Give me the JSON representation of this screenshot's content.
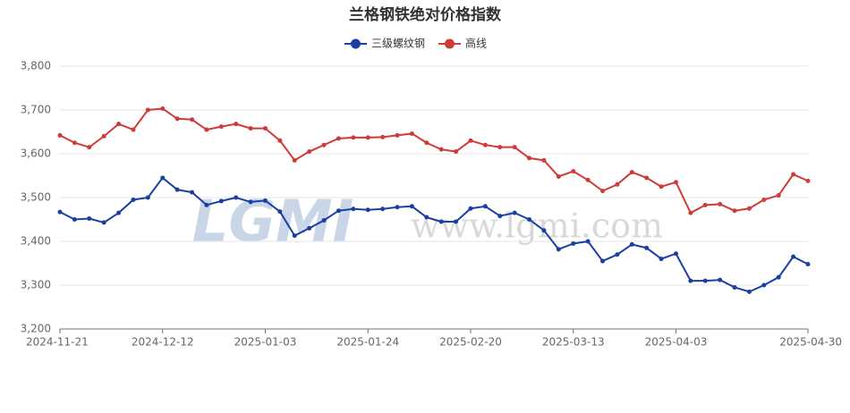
{
  "chart_data": {
    "type": "line",
    "title": "兰格钢铁绝对价格指数",
    "watermark": [
      "LGMI",
      "www.lgmi.com"
    ],
    "categories": [
      "2024-11-21",
      null,
      null,
      null,
      null,
      null,
      null,
      "2024-12-12",
      null,
      null,
      null,
      null,
      null,
      null,
      "2025-01-03",
      null,
      null,
      null,
      null,
      null,
      null,
      "2025-01-24",
      null,
      null,
      null,
      null,
      null,
      null,
      "2025-02-20",
      null,
      null,
      null,
      null,
      null,
      null,
      "2025-03-13",
      null,
      null,
      null,
      null,
      null,
      null,
      "2025-04-03",
      null,
      null,
      null,
      null,
      null,
      null,
      null,
      null,
      "2025-04-30"
    ],
    "series": [
      {
        "name": "三级螺纹钢",
        "color": "#1a3fa3",
        "values": [
          3467,
          3450,
          3452,
          3443,
          3465,
          3495,
          3500,
          3545,
          3518,
          3512,
          3483,
          3492,
          3500,
          3490,
          3493,
          3468,
          3413,
          3430,
          3448,
          3470,
          3474,
          3472,
          3474,
          3478,
          3480,
          3455,
          3445,
          3445,
          3475,
          3480,
          3458,
          3465,
          3450,
          3425,
          3382,
          3395,
          3400,
          3355,
          3370,
          3393,
          3385,
          3360,
          3372,
          3310,
          3310,
          3312,
          3295,
          3285,
          3300,
          3318,
          3365,
          3348
        ]
      },
      {
        "name": "高线",
        "color": "#d03a37",
        "values": [
          3642,
          3625,
          3615,
          3640,
          3668,
          3655,
          3700,
          3703,
          3680,
          3678,
          3655,
          3662,
          3668,
          3658,
          3658,
          3630,
          3585,
          3605,
          3620,
          3635,
          3637,
          3637,
          3638,
          3642,
          3646,
          3625,
          3610,
          3605,
          3630,
          3620,
          3615,
          3615,
          3590,
          3585,
          3548,
          3560,
          3540,
          3515,
          3530,
          3558,
          3545,
          3525,
          3535,
          3465,
          3483,
          3485,
          3470,
          3475,
          3495,
          3505,
          3553,
          3538
        ]
      }
    ],
    "ylim": [
      3200,
      3800
    ],
    "yticks": [
      {
        "value": 3200,
        "label": "3,200"
      },
      {
        "value": 3300,
        "label": "3,300"
      },
      {
        "value": 3400,
        "label": "3,400"
      },
      {
        "value": 3500,
        "label": "3,500"
      },
      {
        "value": 3600,
        "label": "3,600"
      },
      {
        "value": 3700,
        "label": "3,700"
      },
      {
        "value": 3800,
        "label": "3,800"
      }
    ],
    "grid": true
  }
}
